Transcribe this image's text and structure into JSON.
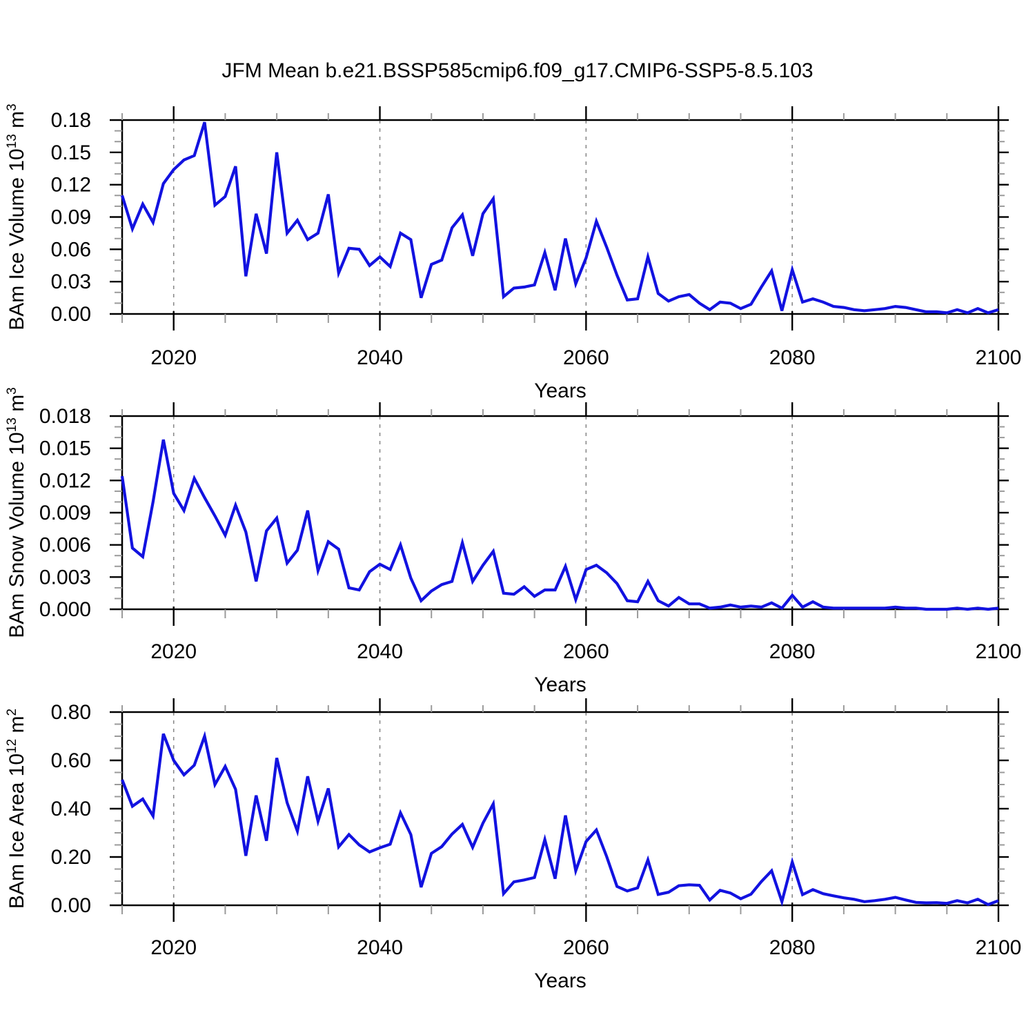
{
  "title": "JFM Mean b.e21.BSSP585cmip6.f09_g17.CMIP6-SSP5-8.5.103",
  "colors": {
    "line": "#1212E0",
    "axis": "#000000",
    "grid": "#8A8A8A",
    "minor_tick": "#9A9A9A",
    "background": "#FFFFFF",
    "text": "#000000"
  },
  "chart_data": {
    "type": "line",
    "xlabel": "Years",
    "legend": "none",
    "grid": "vertical-dashed",
    "years": [
      2015,
      2016,
      2017,
      2018,
      2019,
      2020,
      2021,
      2022,
      2023,
      2024,
      2025,
      2026,
      2027,
      2028,
      2029,
      2030,
      2031,
      2032,
      2033,
      2034,
      2035,
      2036,
      2037,
      2038,
      2039,
      2040,
      2041,
      2042,
      2043,
      2044,
      2045,
      2046,
      2047,
      2048,
      2049,
      2050,
      2051,
      2052,
      2053,
      2054,
      2055,
      2056,
      2057,
      2058,
      2059,
      2060,
      2061,
      2062,
      2063,
      2064,
      2065,
      2066,
      2067,
      2068,
      2069,
      2070,
      2071,
      2072,
      2073,
      2074,
      2075,
      2076,
      2077,
      2078,
      2079,
      2080,
      2081,
      2082,
      2083,
      2084,
      2085,
      2086,
      2087,
      2088,
      2089,
      2090,
      2091,
      2092,
      2093,
      2094,
      2095,
      2096,
      2097,
      2098,
      2099,
      2100
    ],
    "panels": [
      {
        "id": "ice-volume",
        "ylabel": "BAm Ice Volume 10^13 m^3",
        "ylabel_segments": [
          {
            "t": "BAm Ice Volume 10"
          },
          {
            "t": "13",
            "sup": true
          },
          {
            "t": " m"
          },
          {
            "t": "3",
            "sup": true
          }
        ],
        "ylim": [
          0,
          0.18
        ],
        "yticks": [
          0,
          0.03,
          0.06,
          0.09,
          0.12,
          0.15,
          0.18
        ],
        "ytick_labels": [
          "0.00",
          "0.03",
          "0.06",
          "0.09",
          "0.12",
          "0.15",
          "0.18"
        ],
        "y_minor_step": 0.01,
        "xlim": [
          2015,
          2100
        ],
        "xticks": [
          2020,
          2040,
          2060,
          2080,
          2100
        ],
        "xtick_labels": [
          "2020",
          "2040",
          "2060",
          "2080",
          "2100"
        ],
        "x_minor_step": 5,
        "grid_x": [
          2020,
          2040,
          2060,
          2080
        ],
        "values": [
          0.11,
          0.079,
          0.102,
          0.085,
          0.121,
          0.134,
          0.143,
          0.147,
          0.178,
          0.101,
          0.109,
          0.137,
          0.035,
          0.093,
          0.056,
          0.15,
          0.075,
          0.087,
          0.069,
          0.075,
          0.111,
          0.038,
          0.061,
          0.06,
          0.045,
          0.053,
          0.044,
          0.075,
          0.069,
          0.015,
          0.046,
          0.05,
          0.08,
          0.092,
          0.054,
          0.093,
          0.107,
          0.016,
          0.024,
          0.025,
          0.027,
          0.057,
          0.022,
          0.07,
          0.028,
          0.052,
          0.086,
          0.062,
          0.036,
          0.013,
          0.014,
          0.053,
          0.019,
          0.012,
          0.016,
          0.018,
          0.01,
          0.004,
          0.011,
          0.01,
          0.005,
          0.009,
          0.025,
          0.04,
          0.003,
          0.041,
          0.011,
          0.014,
          0.011,
          0.007,
          0.006,
          0.004,
          0.003,
          0.004,
          0.005,
          0.007,
          0.006,
          0.004,
          0.002,
          0.002,
          0.001,
          0.004,
          0.001,
          0.005,
          0.001,
          0.004
        ]
      },
      {
        "id": "snow-volume",
        "ylabel": "BAm Snow Volume 10^13 m^3",
        "ylabel_segments": [
          {
            "t": "BAm Snow Volume 10"
          },
          {
            "t": "13",
            "sup": true
          },
          {
            "t": " m"
          },
          {
            "t": "3",
            "sup": true
          }
        ],
        "ylim": [
          0,
          0.018
        ],
        "yticks": [
          0,
          0.003,
          0.006,
          0.009,
          0.012,
          0.015,
          0.018
        ],
        "ytick_labels": [
          "0.000",
          "0.003",
          "0.006",
          "0.009",
          "0.012",
          "0.015",
          "0.018"
        ],
        "y_minor_step": 0.001,
        "xlim": [
          2015,
          2100
        ],
        "xticks": [
          2020,
          2040,
          2060,
          2080,
          2100
        ],
        "xtick_labels": [
          "2020",
          "2040",
          "2060",
          "2080",
          "2100"
        ],
        "x_minor_step": 5,
        "grid_x": [
          2020,
          2040,
          2060,
          2080
        ],
        "values": [
          0.0124,
          0.0057,
          0.0049,
          0.01,
          0.0158,
          0.0108,
          0.0092,
          0.0122,
          0.0104,
          0.0087,
          0.0069,
          0.0097,
          0.0072,
          0.0026,
          0.0073,
          0.0085,
          0.0043,
          0.0055,
          0.0092,
          0.0036,
          0.0063,
          0.0056,
          0.002,
          0.0018,
          0.0035,
          0.0042,
          0.0037,
          0.006,
          0.0029,
          0.0008,
          0.0017,
          0.0023,
          0.0026,
          0.0062,
          0.0026,
          0.0041,
          0.0054,
          0.0015,
          0.0014,
          0.0021,
          0.0012,
          0.0018,
          0.0018,
          0.004,
          0.0009,
          0.0037,
          0.0041,
          0.0034,
          0.0024,
          0.0008,
          0.0007,
          0.0026,
          0.0008,
          0.0003,
          0.0011,
          0.0005,
          0.0005,
          0.0001,
          0.0002,
          0.0004,
          0.0002,
          0.0003,
          0.0002,
          0.0006,
          0.0001,
          0.0013,
          0.0002,
          0.0007,
          0.0002,
          0.0001,
          0.0001,
          0.0001,
          0.0001,
          0.0001,
          0.0001,
          0.0002,
          0.0001,
          0.0001,
          0.0,
          0.0,
          0.0,
          0.0001,
          0.0,
          0.0001,
          0.0,
          0.0001
        ]
      },
      {
        "id": "ice-area",
        "ylabel": "BAm Ice Area 10^12 m^2",
        "ylabel_segments": [
          {
            "t": "BAm Ice Area 10"
          },
          {
            "t": "12",
            "sup": true
          },
          {
            "t": " m"
          },
          {
            "t": "2",
            "sup": true
          }
        ],
        "ylim": [
          0,
          0.8
        ],
        "yticks": [
          0,
          0.2,
          0.4,
          0.6,
          0.8
        ],
        "ytick_labels": [
          "0.00",
          "0.20",
          "0.40",
          "0.60",
          "0.80"
        ],
        "y_minor_step": 0.05,
        "xlim": [
          2015,
          2100
        ],
        "xticks": [
          2020,
          2040,
          2060,
          2080,
          2100
        ],
        "xtick_labels": [
          "2020",
          "2040",
          "2060",
          "2080",
          "2100"
        ],
        "x_minor_step": 5,
        "grid_x": [
          2020,
          2040,
          2060,
          2080
        ],
        "values": [
          0.52,
          0.41,
          0.44,
          0.37,
          0.71,
          0.6,
          0.54,
          0.58,
          0.7,
          0.5,
          0.575,
          0.48,
          0.205,
          0.455,
          0.267,
          0.61,
          0.425,
          0.307,
          0.534,
          0.348,
          0.484,
          0.242,
          0.293,
          0.25,
          0.221,
          0.238,
          0.253,
          0.383,
          0.293,
          0.075,
          0.215,
          0.243,
          0.295,
          0.335,
          0.24,
          0.34,
          0.42,
          0.048,
          0.097,
          0.105,
          0.115,
          0.272,
          0.11,
          0.372,
          0.143,
          0.264,
          0.312,
          0.202,
          0.078,
          0.059,
          0.072,
          0.188,
          0.045,
          0.054,
          0.081,
          0.085,
          0.083,
          0.022,
          0.062,
          0.051,
          0.027,
          0.046,
          0.098,
          0.143,
          0.015,
          0.179,
          0.044,
          0.065,
          0.048,
          0.039,
          0.031,
          0.025,
          0.015,
          0.019,
          0.025,
          0.033,
          0.022,
          0.012,
          0.01,
          0.011,
          0.008,
          0.019,
          0.01,
          0.025,
          0.003,
          0.019
        ]
      }
    ]
  }
}
